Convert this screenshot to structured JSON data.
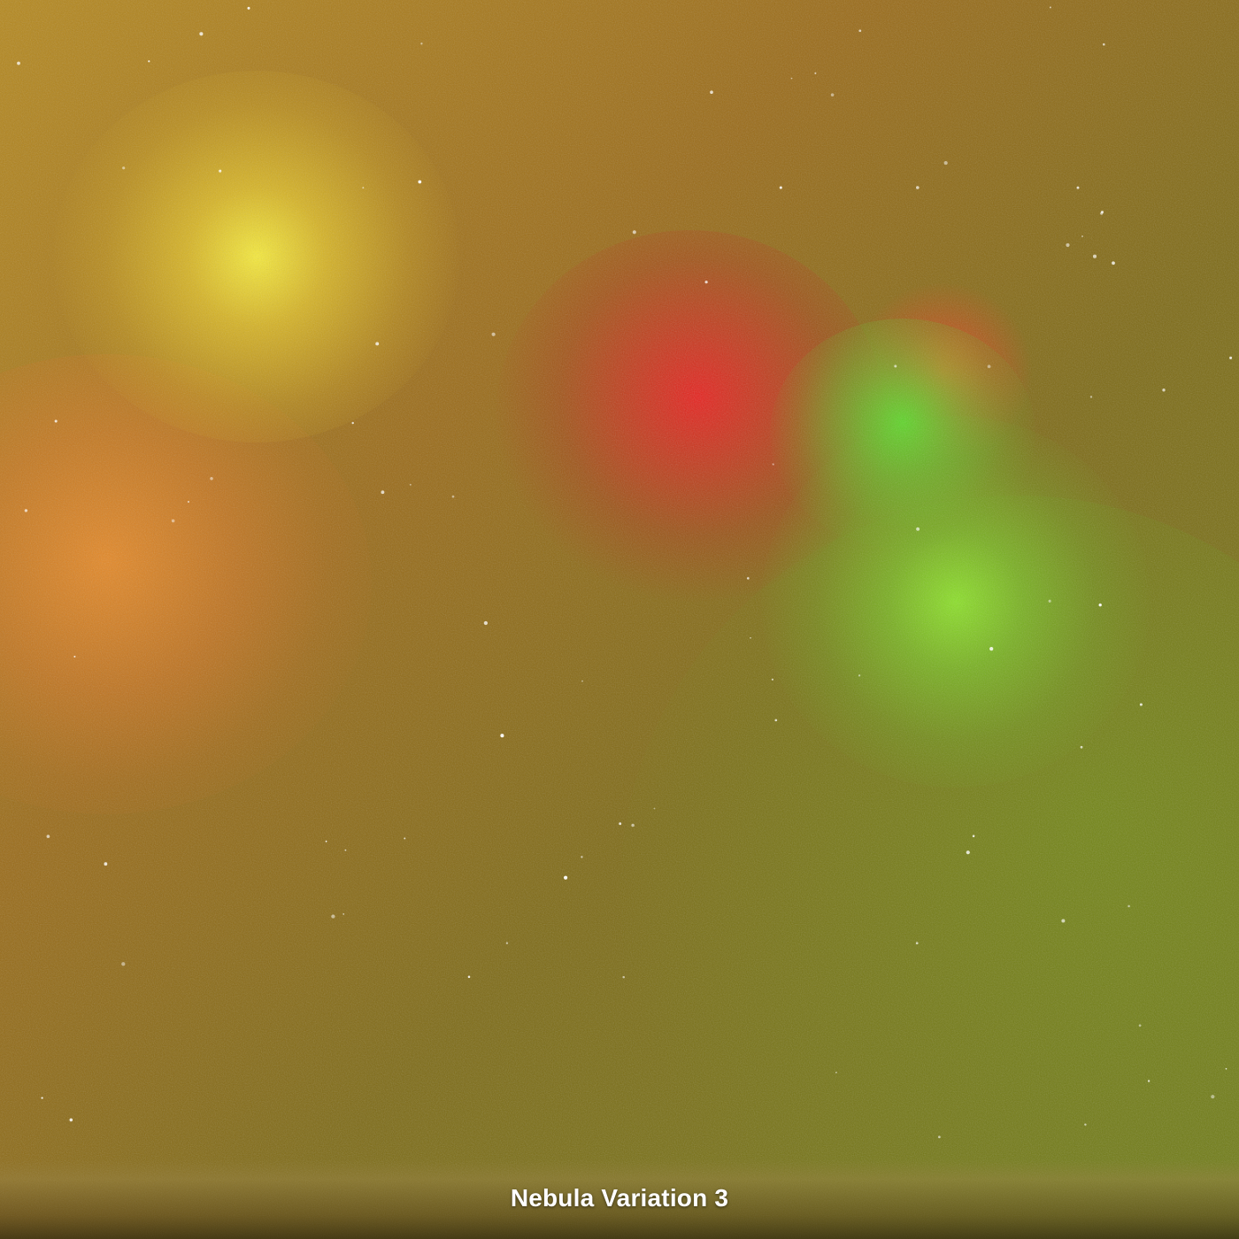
{
  "caption": "Nebula Variation 3",
  "colors": {
    "yellow_glow": "#f2e832",
    "orange_glow": "#ec8a2a",
    "red_glow": "#e61f23",
    "orange_red_glow": "#f0552a",
    "green_glow": "#5cd428",
    "lime_glow": "#8de02c",
    "background_gold": "#a87a18",
    "background_olive": "#6f7a16",
    "caption_text": "#ffffff"
  }
}
